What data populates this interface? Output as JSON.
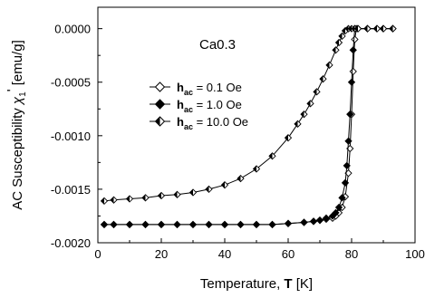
{
  "chart_data": {
    "type": "line",
    "title": "",
    "annotation": "Ca0.3",
    "xlabel_prefix": "Temperature, ",
    "xlabel_bold": "T",
    "xlabel_suffix": " [K]",
    "ylabel_main": "AC Susceptibility ",
    "ylabel_symbol": "χ",
    "ylabel_sub": "1",
    "ylabel_prime": "'",
    "ylabel_units": " [emu/g]",
    "xlim": [
      0,
      100
    ],
    "ylim": [
      -0.002,
      0.0002
    ],
    "xticks": [
      "0",
      "20",
      "40",
      "60",
      "80",
      "100"
    ],
    "yticks": [
      "0.0000",
      "-0.0005",
      "-0.0010",
      "-0.0015",
      "-0.0020"
    ],
    "legend_placement": "upper-middle",
    "series": [
      {
        "name_bold": "h",
        "name_sub": "ac",
        "name_rest": " = 0.1 Oe",
        "marker": "open-diamond",
        "x": [
          2,
          5,
          10,
          15,
          20,
          25,
          30,
          35,
          40,
          45,
          50,
          55,
          60,
          65,
          68,
          70,
          72,
          74,
          75,
          76,
          77,
          78,
          79,
          79.5,
          80,
          80.5,
          81,
          81.5,
          82,
          85,
          88,
          90,
          93
        ],
        "values": [
          -0.00183,
          -0.00183,
          -0.00183,
          -0.00183,
          -0.00183,
          -0.00183,
          -0.00183,
          -0.00183,
          -0.00183,
          -0.00183,
          -0.00183,
          -0.00183,
          -0.00182,
          -0.00181,
          -0.0018,
          -0.00179,
          -0.00178,
          -0.00177,
          -0.00175,
          -0.00172,
          -0.00167,
          -0.00157,
          -0.00135,
          -0.00112,
          -0.0008,
          -0.0004,
          -0.0001,
          0.0,
          0.0,
          0.0,
          0.0,
          0.0,
          0.0
        ]
      },
      {
        "name_bold": "h",
        "name_sub": "ac",
        "name_rest": " = 1.0 Oe",
        "marker": "filled-diamond",
        "x": [
          2,
          5,
          10,
          15,
          20,
          25,
          30,
          35,
          40,
          45,
          50,
          55,
          60,
          65,
          68,
          70,
          72,
          74,
          75,
          76,
          77,
          78,
          78.5,
          79,
          79.5,
          80,
          80.5,
          81,
          82,
          85,
          88,
          90,
          93
        ],
        "values": [
          -0.00183,
          -0.00183,
          -0.00183,
          -0.00183,
          -0.00183,
          -0.00183,
          -0.00183,
          -0.00183,
          -0.00183,
          -0.00183,
          -0.00183,
          -0.00183,
          -0.00182,
          -0.00181,
          -0.0018,
          -0.00179,
          -0.00177,
          -0.00175,
          -0.00172,
          -0.00167,
          -0.00158,
          -0.00144,
          -0.00128,
          -0.00105,
          -0.0008,
          -0.0005,
          -0.0002,
          0.0,
          0.0,
          0.0,
          0.0,
          0.0,
          0.0
        ]
      },
      {
        "name_bold": "h",
        "name_sub": "ac",
        "name_rest": " = 10.0 Oe",
        "marker": "half-filled-diamond",
        "x": [
          2,
          5,
          10,
          15,
          20,
          25,
          30,
          35,
          40,
          45,
          50,
          55,
          60,
          63,
          65,
          67,
          69,
          71,
          73,
          75,
          76,
          77,
          78,
          79,
          80,
          81,
          82,
          85,
          88,
          90,
          93
        ],
        "values": [
          -0.00161,
          -0.0016,
          -0.00159,
          -0.00158,
          -0.00156,
          -0.00155,
          -0.00153,
          -0.0015,
          -0.00146,
          -0.0014,
          -0.00131,
          -0.00119,
          -0.00102,
          -0.00089,
          -0.0008,
          -0.0007,
          -0.00059,
          -0.00047,
          -0.00034,
          -0.0002,
          -0.00013,
          -7e-05,
          -2e-05,
          0.0,
          0.0,
          0.0,
          0.0,
          0.0,
          0.0,
          0.0,
          0.0
        ]
      }
    ]
  }
}
